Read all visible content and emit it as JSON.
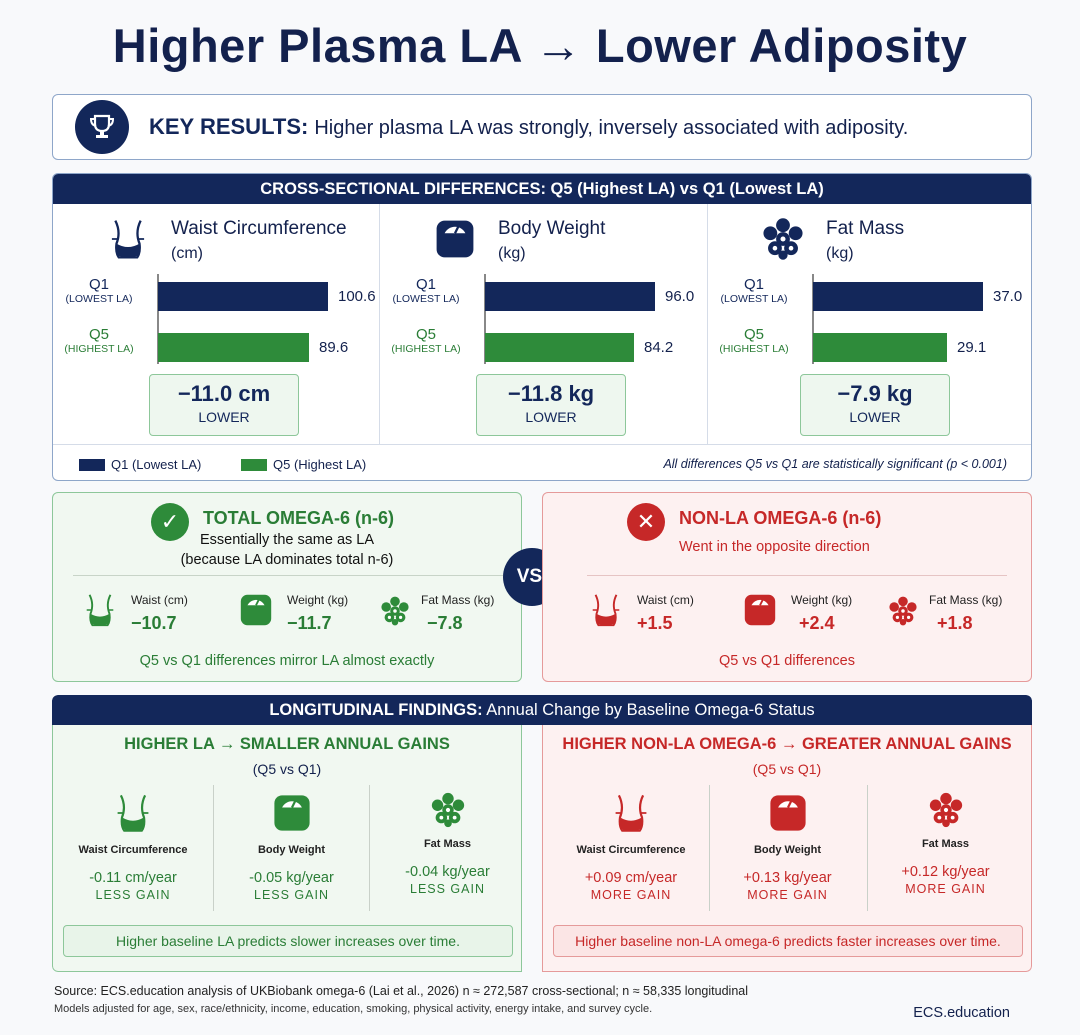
{
  "title": "Higher Plasma LA → Lower Adiposity",
  "key_results": {
    "label": "KEY RESULTS:",
    "text": "Higher plasma LA was strongly, inversely associated with adiposity."
  },
  "cross_sectional": {
    "header": "CROSS-SECTIONAL DIFFERENCES: Q5 (Highest LA) vs Q1 (Lowest LA)",
    "q1_label": "Q1",
    "q1_sub": "(LOWEST LA)",
    "q5_label": "Q5",
    "q5_sub": "(HIGHEST LA)",
    "legend_q1": "Q1 (Lowest LA)",
    "legend_q5": "Q5 (Highest LA)",
    "note": "All differences Q5 vs Q1 are statistically significant (p < 0.001)"
  },
  "chart_data": {
    "type": "bar",
    "title": "CROSS-SECTIONAL DIFFERENCES: Q5 (Highest LA) vs Q1 (Lowest LA)",
    "panels": [
      {
        "name": "Waist Circumference",
        "unit": "(cm)",
        "q1": 100.6,
        "q5": 89.6,
        "q1_text": "100.6",
        "q5_text": "89.6",
        "diff": "−11.0 cm",
        "diff_label": "LOWER"
      },
      {
        "name": "Body Weight",
        "unit": "(kg)",
        "q1": 96.0,
        "q5": 84.2,
        "q1_text": "96.0",
        "q5_text": "84.2",
        "diff": "−11.8 kg",
        "diff_label": "LOWER"
      },
      {
        "name": "Fat Mass",
        "unit": "(kg)",
        "q1": 37.0,
        "q5": 29.1,
        "q1_text": "37.0",
        "q5_text": "29.1",
        "diff": "−7.9 kg",
        "diff_label": "LOWER"
      }
    ],
    "series": [
      {
        "name": "Q1 (Lowest LA)",
        "color": "#13275a"
      },
      {
        "name": "Q5 (Highest LA)",
        "color": "#2e8b3a"
      }
    ]
  },
  "omega_total": {
    "title": "TOTAL OMEGA-6 (n-6)",
    "sub1": "Essentially the same as LA",
    "sub2": "(because LA dominates total n-6)",
    "items": [
      {
        "name": "Waist (cm)",
        "value": "−10.7"
      },
      {
        "name": "Weight (kg)",
        "value": "−11.7"
      },
      {
        "name": "Fat Mass (kg)",
        "value": "−7.8"
      }
    ],
    "footer": "Q5 vs Q1 differences mirror LA almost exactly"
  },
  "vs": "VS.",
  "omega_nonla": {
    "title": "NON-LA OMEGA-6 (n-6)",
    "sub1": "Went in the opposite direction",
    "items": [
      {
        "name": "Waist (cm)",
        "value": "+1.5"
      },
      {
        "name": "Weight (kg)",
        "value": "+2.4"
      },
      {
        "name": "Fat Mass (kg)",
        "value": "+1.8"
      }
    ],
    "footer": "Q5 vs Q1 differences"
  },
  "longitudinal": {
    "header_bold": "LONGITUDINAL FINDINGS:",
    "header_rest": " Annual Change by Baseline Omega-6 Status",
    "left": {
      "title": "HIGHER LA → SMALLER ANNUAL GAINS",
      "sub": "(Q5 vs Q1)",
      "cols": [
        {
          "name": "Waist Circumference",
          "value": "-0.11 cm/year",
          "gain": "LESS GAIN"
        },
        {
          "name": "Body Weight",
          "value": "-0.05 kg/year",
          "gain": "LESS GAIN"
        },
        {
          "name": "Fat Mass",
          "value": "-0.04 kg/year",
          "gain": "LESS GAIN"
        }
      ],
      "footer": "Higher baseline LA predicts slower increases over time."
    },
    "right": {
      "title": "HIGHER NON-LA OMEGA-6 → GREATER ANNUAL GAINS",
      "sub": "(Q5 vs Q1)",
      "cols": [
        {
          "name": "Waist Circumference",
          "value": "+0.09 cm/year",
          "gain": "MORE GAIN"
        },
        {
          "name": "Body Weight",
          "value": "+0.13 kg/year",
          "gain": "MORE GAIN"
        },
        {
          "name": "Fat Mass",
          "value": "+0.12 kg/year",
          "gain": "MORE GAIN"
        }
      ],
      "footer": "Higher baseline non-LA omega-6 predicts faster increases over time."
    }
  },
  "source": "Source: ECS.education analysis of UKBiobank omega-6 (Lai et al., 2026) n ≈ 272,587 cross-sectional; n ≈ 58,335 longitudinal",
  "models": "Models adjusted for age, sex, race/ethnicity, income, education, smoking, physical activity, energy intake, and survey cycle.",
  "brand": "ECS.education",
  "colors": {
    "navy": "#13275a",
    "green": "#2e8b3a",
    "red": "#c62828"
  }
}
